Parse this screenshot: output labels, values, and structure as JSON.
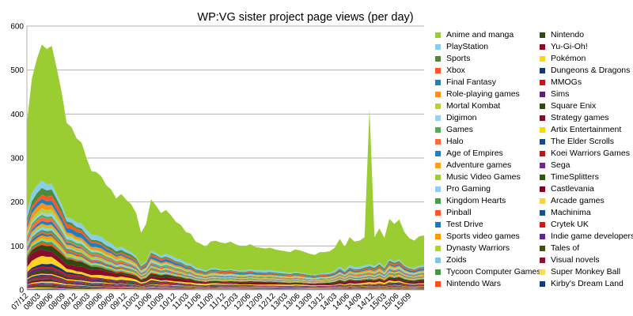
{
  "chart_data": {
    "type": "area",
    "stacked": true,
    "title": "WP:VG sister project page views (per day)",
    "xlabel": "",
    "ylabel": "",
    "ylim": [
      0,
      600
    ],
    "yticks": [
      0,
      100,
      200,
      300,
      400,
      500,
      600
    ],
    "grid": "horizontal",
    "legend_position": "right",
    "x_tick_labels": [
      "07/12",
      "08/03",
      "08/06",
      "08/09",
      "08/12",
      "09/03",
      "09/06",
      "09/09",
      "09/12",
      "10/03",
      "10/06",
      "10/09",
      "10/12",
      "11/03",
      "11/06",
      "11/09",
      "11/12",
      "12/03",
      "12/06",
      "12/09",
      "12/12",
      "13/03",
      "13/06",
      "13/09",
      "13/12",
      "14/03",
      "14/06",
      "14/09",
      "14/12",
      "15/03",
      "15/06",
      "15/09"
    ],
    "totals": [
      380,
      480,
      525,
      558,
      548,
      555,
      505,
      450,
      380,
      370,
      345,
      335,
      300,
      270,
      268,
      258,
      238,
      228,
      208,
      218,
      205,
      195,
      175,
      130,
      150,
      206,
      192,
      175,
      182,
      170,
      155,
      148,
      132,
      128,
      110,
      105,
      98,
      110,
      112,
      108,
      106,
      110,
      104,
      100,
      100,
      104,
      98,
      96,
      94,
      96,
      92,
      90,
      88,
      86,
      92,
      90,
      86,
      82,
      80,
      86,
      86,
      88,
      96,
      116,
      98,
      120,
      110,
      112,
      120,
      412,
      120,
      140,
      118,
      162,
      150,
      160,
      132,
      118,
      112,
      122,
      124
    ],
    "spike_note": "Anime and manga spike at 14/09 (about 412)",
    "series": [
      {
        "name": "Anime and manga",
        "color": "#9acd32",
        "frac": 0.55
      },
      {
        "name": "PlayStation",
        "color": "#87ceeb",
        "frac": 0.04
      },
      {
        "name": "Sports",
        "color": "#4b8b3b",
        "frac": 0.025
      },
      {
        "name": "Xbox",
        "color": "#ff5722",
        "frac": 0.02
      },
      {
        "name": "Final Fantasy",
        "color": "#1e7fc0",
        "frac": 0.03
      },
      {
        "name": "Role-playing games",
        "color": "#f7931e",
        "frac": 0.025
      },
      {
        "name": "Mortal Kombat",
        "color": "#b5d334",
        "frac": 0.015
      },
      {
        "name": "Digimon",
        "color": "#9ad0ea",
        "frac": 0.015
      },
      {
        "name": "Games",
        "color": "#4caf50",
        "frac": 0.015
      },
      {
        "name": "Halo",
        "color": "#ff6a3d",
        "frac": 0.015
      },
      {
        "name": "Age of Empires",
        "color": "#1f80c4",
        "frac": 0.012
      },
      {
        "name": "Adventure games",
        "color": "#ffa020",
        "frac": 0.012
      },
      {
        "name": "Music Video Games",
        "color": "#a4cc33",
        "frac": 0.01
      },
      {
        "name": "Pro Gaming",
        "color": "#90caf9",
        "frac": 0.01
      },
      {
        "name": "Kingdom Hearts",
        "color": "#43a047",
        "frac": 0.01
      },
      {
        "name": "Pinball",
        "color": "#ff5630",
        "frac": 0.01
      },
      {
        "name": "Test Drive",
        "color": "#1a78bb",
        "frac": 0.01
      },
      {
        "name": "Sports video games",
        "color": "#ff9800",
        "frac": 0.01
      },
      {
        "name": "Dynasty Warriors",
        "color": "#aed42e",
        "frac": 0.01
      },
      {
        "name": "Zoids",
        "color": "#7fc1e8",
        "frac": 0.008
      },
      {
        "name": "Tycoon Computer Games",
        "color": "#3e9c3a",
        "frac": 0.008
      },
      {
        "name": "Nintendo Wars",
        "color": "#ff4e1a",
        "frac": 0.008
      },
      {
        "name": "Nintendo",
        "color": "#2e4a12",
        "frac": 0.03
      },
      {
        "name": "Yu-Gi-Oh!",
        "color": "#8b0a2a",
        "frac": 0.04
      },
      {
        "name": "Pokémon",
        "color": "#ffd21f",
        "frac": 0.03
      },
      {
        "name": "Dungeons & Dragons",
        "color": "#103a6e",
        "frac": 0.012
      },
      {
        "name": "MMOGs",
        "color": "#cc1111",
        "frac": 0.01
      },
      {
        "name": "Sims",
        "color": "#5e1f70",
        "frac": 0.01
      },
      {
        "name": "Square Enix",
        "color": "#2d4a0d",
        "frac": 0.008
      },
      {
        "name": "Strategy games",
        "color": "#7a0f2b",
        "frac": 0.008
      },
      {
        "name": "Artix Entertainment",
        "color": "#ffd700",
        "frac": 0.008
      },
      {
        "name": "The Elder Scrolls",
        "color": "#164a86",
        "frac": 0.008
      },
      {
        "name": "Koei Warriors Games",
        "color": "#c31010",
        "frac": 0.006
      },
      {
        "name": "Sega",
        "color": "#6a2a8a",
        "frac": 0.006
      },
      {
        "name": "TimeSplitters",
        "color": "#3a5410",
        "frac": 0.006
      },
      {
        "name": "Castlevania",
        "color": "#800020",
        "frac": 0.006
      },
      {
        "name": "Arcade games",
        "color": "#ffcf33",
        "frac": 0.006
      },
      {
        "name": "Machinima",
        "color": "#1a4f8e",
        "frac": 0.005
      },
      {
        "name": "Crytek UK",
        "color": "#d21a1a",
        "frac": 0.005
      },
      {
        "name": "Indie game developers",
        "color": "#5b2c83",
        "frac": 0.005
      },
      {
        "name": "Tales of",
        "color": "#3b4f0f",
        "frac": 0.005
      },
      {
        "name": "Visual novels",
        "color": "#8e1030",
        "frac": 0.005
      },
      {
        "name": "Super Monkey Ball",
        "color": "#ffdd44",
        "frac": 0.005
      },
      {
        "name": "Kirby's Dream Land",
        "color": "#123c74",
        "frac": 0.005
      }
    ]
  }
}
